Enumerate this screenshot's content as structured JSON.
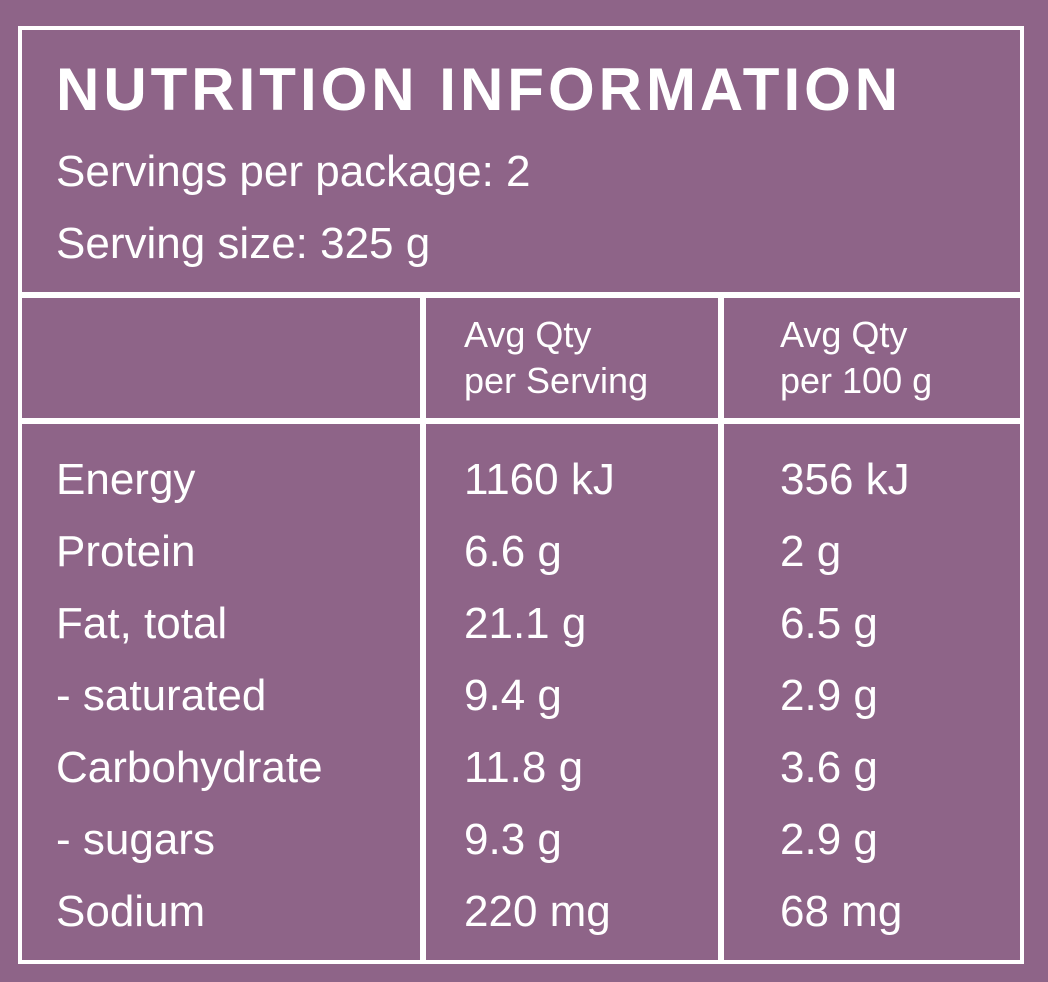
{
  "label": {
    "title": "NUTRITION INFORMATION",
    "servings_per_package": "Servings per package: 2",
    "serving_size": "Serving size: 325 g"
  },
  "table": {
    "headers": [
      {
        "line1": "Avg Qty",
        "line2": "per Serving"
      },
      {
        "line1": "Avg Qty",
        "line2": "per 100 g"
      }
    ],
    "rows": [
      {
        "name": "Energy",
        "per_serving": "1160 kJ",
        "per_100g": "356 kJ"
      },
      {
        "name": "Protein",
        "per_serving": "6.6 g",
        "per_100g": "2 g"
      },
      {
        "name": "Fat, total",
        "per_serving": "21.1 g",
        "per_100g": "6.5 g"
      },
      {
        "name": "- saturated",
        "per_serving": "9.4 g",
        "per_100g": "2.9 g"
      },
      {
        "name": "Carbohydrate",
        "per_serving": "11.8 g",
        "per_100g": "3.6 g"
      },
      {
        "name": "- sugars",
        "per_serving": "9.3 g",
        "per_100g": "2.9 g"
      },
      {
        "name": "Sodium",
        "per_serving": "220 mg",
        "per_100g": "68 mg"
      }
    ]
  },
  "colors": {
    "background": "#8e6488",
    "foreground": "#ffffff"
  }
}
